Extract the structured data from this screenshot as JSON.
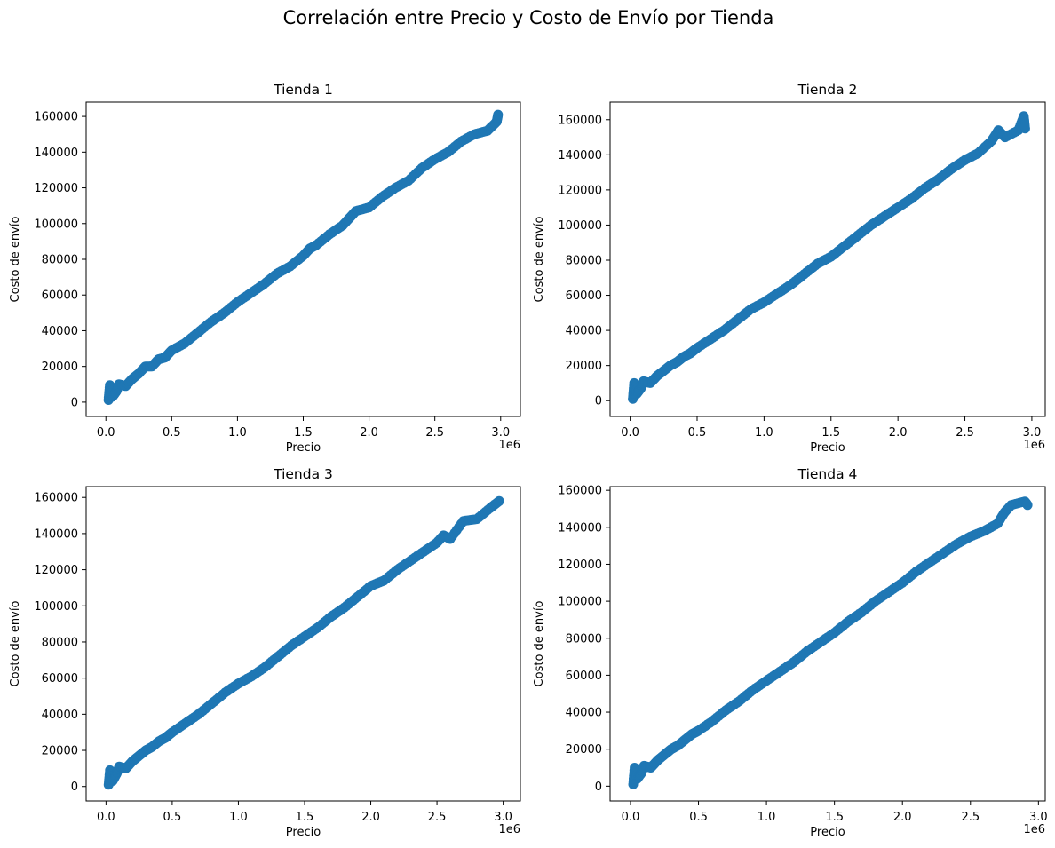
{
  "figure": {
    "suptitle": "Correlación entre Precio y Costo de Envío por Tienda",
    "marker_color": "#1f77b4"
  },
  "chart_data": [
    {
      "type": "scatter",
      "title": "Tienda 1",
      "xlabel": "Precio",
      "ylabel": "Costo de envío",
      "x_offset_label": "1e6",
      "x_scale_note": "x values in units of 1e6",
      "xlim": [
        -0.15,
        3.15
      ],
      "ylim": [
        -8000,
        168000
      ],
      "xticks": [
        0.0,
        0.5,
        1.0,
        1.5,
        2.0,
        2.5,
        3.0
      ],
      "xtick_labels": [
        "0.0",
        "0.5",
        "1.0",
        "1.5",
        "2.0",
        "2.5",
        "3.0"
      ],
      "yticks": [
        0,
        20000,
        40000,
        60000,
        80000,
        100000,
        120000,
        140000,
        160000
      ],
      "ytick_labels": [
        "0",
        "20000",
        "40000",
        "60000",
        "80000",
        "100000",
        "120000",
        "140000",
        "160000"
      ],
      "points": [
        [
          0.02,
          1200
        ],
        [
          0.03,
          9500
        ],
        [
          0.05,
          3000
        ],
        [
          0.08,
          6000
        ],
        [
          0.1,
          10000
        ],
        [
          0.15,
          9000
        ],
        [
          0.2,
          13000
        ],
        [
          0.25,
          16000
        ],
        [
          0.3,
          20000
        ],
        [
          0.35,
          20000
        ],
        [
          0.4,
          24000
        ],
        [
          0.45,
          25000
        ],
        [
          0.5,
          29000
        ],
        [
          0.6,
          33000
        ],
        [
          0.7,
          39000
        ],
        [
          0.8,
          45000
        ],
        [
          0.9,
          50000
        ],
        [
          1.0,
          56000
        ],
        [
          1.1,
          61000
        ],
        [
          1.2,
          66000
        ],
        [
          1.3,
          72000
        ],
        [
          1.4,
          76000
        ],
        [
          1.5,
          82000
        ],
        [
          1.55,
          86000
        ],
        [
          1.6,
          88000
        ],
        [
          1.7,
          94000
        ],
        [
          1.8,
          99000
        ],
        [
          1.85,
          103000
        ],
        [
          1.9,
          107000
        ],
        [
          2.0,
          109000
        ],
        [
          2.1,
          115000
        ],
        [
          2.2,
          120000
        ],
        [
          2.3,
          124000
        ],
        [
          2.4,
          131000
        ],
        [
          2.5,
          136000
        ],
        [
          2.6,
          140000
        ],
        [
          2.7,
          146000
        ],
        [
          2.8,
          150000
        ],
        [
          2.9,
          152000
        ],
        [
          2.97,
          157000
        ],
        [
          2.98,
          161000
        ]
      ]
    },
    {
      "type": "scatter",
      "title": "Tienda 2",
      "xlabel": "Precio",
      "ylabel": "Costo de envío",
      "x_offset_label": "1e6",
      "x_scale_note": "x values in units of 1e6",
      "xlim": [
        -0.15,
        3.1
      ],
      "ylim": [
        -9000,
        170000
      ],
      "xticks": [
        0.0,
        0.5,
        1.0,
        1.5,
        2.0,
        2.5,
        3.0
      ],
      "xtick_labels": [
        "0.0",
        "0.5",
        "1.0",
        "1.5",
        "2.0",
        "2.5",
        "3.0"
      ],
      "yticks": [
        0,
        20000,
        40000,
        60000,
        80000,
        100000,
        120000,
        140000,
        160000
      ],
      "ytick_labels": [
        "0",
        "20000",
        "40000",
        "60000",
        "80000",
        "100000",
        "120000",
        "140000",
        "160000"
      ],
      "points": [
        [
          0.02,
          1000
        ],
        [
          0.03,
          10000
        ],
        [
          0.05,
          4000
        ],
        [
          0.08,
          7000
        ],
        [
          0.1,
          11000
        ],
        [
          0.15,
          10000
        ],
        [
          0.2,
          14000
        ],
        [
          0.25,
          17000
        ],
        [
          0.3,
          20000
        ],
        [
          0.35,
          22000
        ],
        [
          0.4,
          25000
        ],
        [
          0.45,
          27000
        ],
        [
          0.5,
          30000
        ],
        [
          0.6,
          35000
        ],
        [
          0.7,
          40000
        ],
        [
          0.8,
          46000
        ],
        [
          0.9,
          52000
        ],
        [
          1.0,
          56000
        ],
        [
          1.1,
          61000
        ],
        [
          1.2,
          66000
        ],
        [
          1.3,
          72000
        ],
        [
          1.4,
          78000
        ],
        [
          1.5,
          82000
        ],
        [
          1.6,
          88000
        ],
        [
          1.7,
          94000
        ],
        [
          1.8,
          100000
        ],
        [
          1.9,
          105000
        ],
        [
          2.0,
          110000
        ],
        [
          2.1,
          115000
        ],
        [
          2.2,
          121000
        ],
        [
          2.3,
          126000
        ],
        [
          2.4,
          132000
        ],
        [
          2.5,
          137000
        ],
        [
          2.6,
          141000
        ],
        [
          2.7,
          148000
        ],
        [
          2.75,
          154000
        ],
        [
          2.8,
          150000
        ],
        [
          2.9,
          154000
        ],
        [
          2.95,
          155000
        ],
        [
          2.94,
          162000
        ]
      ]
    },
    {
      "type": "scatter",
      "title": "Tienda 3",
      "xlabel": "Precio",
      "ylabel": "Costo de envío",
      "x_offset_label": "1e6",
      "x_scale_note": "x values in units of 1e6",
      "xlim": [
        -0.15,
        3.13
      ],
      "ylim": [
        -8000,
        166000
      ],
      "xticks": [
        0.0,
        0.5,
        1.0,
        1.5,
        2.0,
        2.5,
        3.0
      ],
      "xtick_labels": [
        "0.0",
        "0.5",
        "1.0",
        "1.5",
        "2.0",
        "2.5",
        "3.0"
      ],
      "yticks": [
        0,
        20000,
        40000,
        60000,
        80000,
        100000,
        120000,
        140000,
        160000
      ],
      "ytick_labels": [
        "0",
        "20000",
        "40000",
        "60000",
        "80000",
        "100000",
        "120000",
        "140000",
        "160000"
      ],
      "points": [
        [
          0.02,
          1000
        ],
        [
          0.03,
          9000
        ],
        [
          0.05,
          3000
        ],
        [
          0.08,
          7000
        ],
        [
          0.1,
          11000
        ],
        [
          0.15,
          10000
        ],
        [
          0.2,
          14000
        ],
        [
          0.25,
          17000
        ],
        [
          0.3,
          20000
        ],
        [
          0.35,
          22000
        ],
        [
          0.4,
          25000
        ],
        [
          0.45,
          27000
        ],
        [
          0.5,
          30000
        ],
        [
          0.6,
          35000
        ],
        [
          0.7,
          40000
        ],
        [
          0.8,
          46000
        ],
        [
          0.9,
          52000
        ],
        [
          1.0,
          57000
        ],
        [
          1.1,
          61000
        ],
        [
          1.2,
          66000
        ],
        [
          1.3,
          72000
        ],
        [
          1.4,
          78000
        ],
        [
          1.5,
          83000
        ],
        [
          1.6,
          88000
        ],
        [
          1.7,
          94000
        ],
        [
          1.8,
          99000
        ],
        [
          1.9,
          105000
        ],
        [
          2.0,
          111000
        ],
        [
          2.1,
          114000
        ],
        [
          2.2,
          120000
        ],
        [
          2.3,
          125000
        ],
        [
          2.4,
          130000
        ],
        [
          2.5,
          135000
        ],
        [
          2.55,
          139000
        ],
        [
          2.6,
          137000
        ],
        [
          2.7,
          147000
        ],
        [
          2.8,
          148000
        ],
        [
          2.9,
          154000
        ],
        [
          2.97,
          158000
        ]
      ]
    },
    {
      "type": "scatter",
      "title": "Tienda 4",
      "xlabel": "Precio",
      "ylabel": "Costo de envío",
      "x_offset_label": "1e6",
      "x_scale_note": "x values in units of 1e6",
      "xlim": [
        -0.15,
        3.05
      ],
      "ylim": [
        -8000,
        162000
      ],
      "xticks": [
        0.0,
        0.5,
        1.0,
        1.5,
        2.0,
        2.5,
        3.0
      ],
      "xtick_labels": [
        "0.0",
        "0.5",
        "1.0",
        "1.5",
        "2.0",
        "2.5",
        "3.0"
      ],
      "yticks": [
        0,
        20000,
        40000,
        60000,
        80000,
        100000,
        120000,
        140000,
        160000
      ],
      "ytick_labels": [
        "0",
        "20000",
        "40000",
        "60000",
        "80000",
        "100000",
        "120000",
        "140000",
        "160000"
      ],
      "points": [
        [
          0.02,
          1000
        ],
        [
          0.03,
          10000
        ],
        [
          0.05,
          4000
        ],
        [
          0.08,
          7000
        ],
        [
          0.1,
          11000
        ],
        [
          0.15,
          10000
        ],
        [
          0.2,
          14000
        ],
        [
          0.25,
          17000
        ],
        [
          0.3,
          20000
        ],
        [
          0.35,
          22000
        ],
        [
          0.4,
          25000
        ],
        [
          0.45,
          28000
        ],
        [
          0.5,
          30000
        ],
        [
          0.6,
          35000
        ],
        [
          0.7,
          41000
        ],
        [
          0.8,
          46000
        ],
        [
          0.9,
          52000
        ],
        [
          1.0,
          57000
        ],
        [
          1.1,
          62000
        ],
        [
          1.2,
          67000
        ],
        [
          1.3,
          73000
        ],
        [
          1.4,
          78000
        ],
        [
          1.5,
          83000
        ],
        [
          1.6,
          89000
        ],
        [
          1.7,
          94000
        ],
        [
          1.8,
          100000
        ],
        [
          1.9,
          105000
        ],
        [
          2.0,
          110000
        ],
        [
          2.1,
          116000
        ],
        [
          2.2,
          121000
        ],
        [
          2.3,
          126000
        ],
        [
          2.4,
          131000
        ],
        [
          2.5,
          135000
        ],
        [
          2.6,
          138000
        ],
        [
          2.7,
          142000
        ],
        [
          2.75,
          148000
        ],
        [
          2.8,
          152000
        ],
        [
          2.9,
          154000
        ],
        [
          2.92,
          152000
        ]
      ]
    }
  ]
}
